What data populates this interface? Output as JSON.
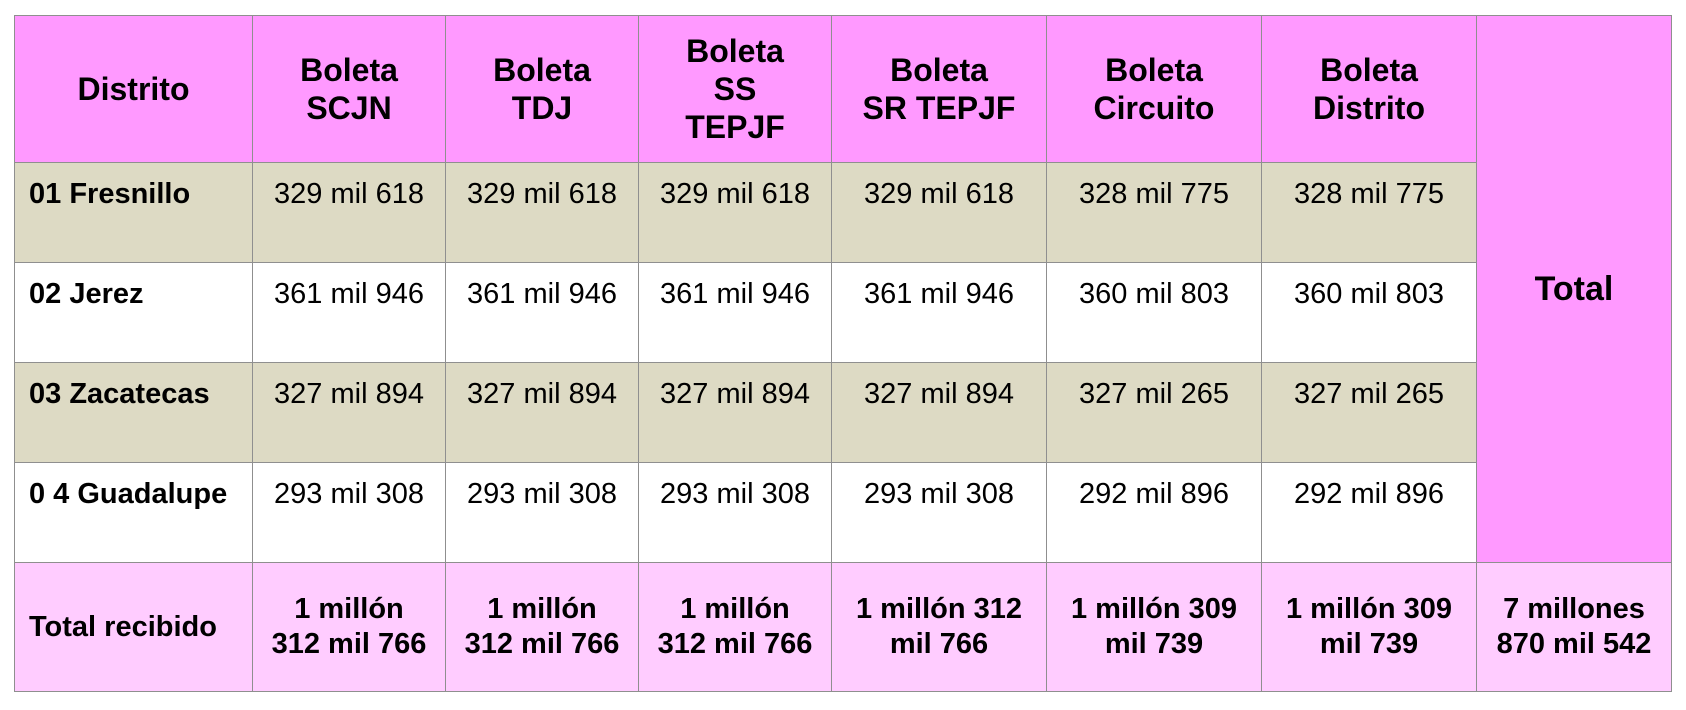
{
  "colors": {
    "header_bg": "#ff99ff",
    "row_alt_bg": "#dddac4",
    "row_bg": "#ffffff",
    "footer_bg": "#ffccff",
    "border": "#8f8f8f"
  },
  "header": {
    "distrito": "Distrito",
    "scjn": [
      "Boleta",
      "SCJN"
    ],
    "tdj": [
      "Boleta",
      "TDJ"
    ],
    "ss": [
      "Boleta",
      "SS",
      "TEPJF"
    ],
    "sr": [
      "Boleta",
      "SR TEPJF"
    ],
    "circuito": [
      "Boleta",
      "Circuito"
    ],
    "distrito_boleta": [
      "Boleta",
      "Distrito"
    ],
    "total": "Total"
  },
  "rows": [
    {
      "name": "01 Fresnillo",
      "scjn": "329 mil 618",
      "tdj": "329 mil 618",
      "ss": "329 mil 618",
      "sr": "329 mil 618",
      "circuito": "328 mil 775",
      "distrito": "328 mil 775"
    },
    {
      "name": "02 Jerez",
      "scjn": "361 mil 946",
      "tdj": "361 mil 946",
      "ss": "361 mil 946",
      "sr": "361 mil 946",
      "circuito": "360 mil 803",
      "distrito": "360 mil 803"
    },
    {
      "name": "03 Zacatecas",
      "scjn": "327 mil 894",
      "tdj": "327 mil 894",
      "ss": "327 mil 894",
      "sr": "327 mil 894",
      "circuito": "327 mil 265",
      "distrito": "327 mil 265"
    },
    {
      "name": "0 4 Guadalupe",
      "scjn": "293 mil 308",
      "tdj": "293 mil 308",
      "ss": "293 mil 308",
      "sr": "293 mil 308",
      "circuito": "292 mil 896",
      "distrito": "292 mil 896"
    }
  ],
  "footer": {
    "label": "Total recibido",
    "scjn": "1 millón 312 mil 766",
    "tdj": "1 millón 312 mil 766",
    "ss": "1 millón 312 mil 766",
    "sr": "1 millón 312 mil 766",
    "circuito": "1 millón 309 mil 739",
    "distrito": "1 millón 309 mil 739",
    "total": "7 millones 870 mil 542"
  }
}
